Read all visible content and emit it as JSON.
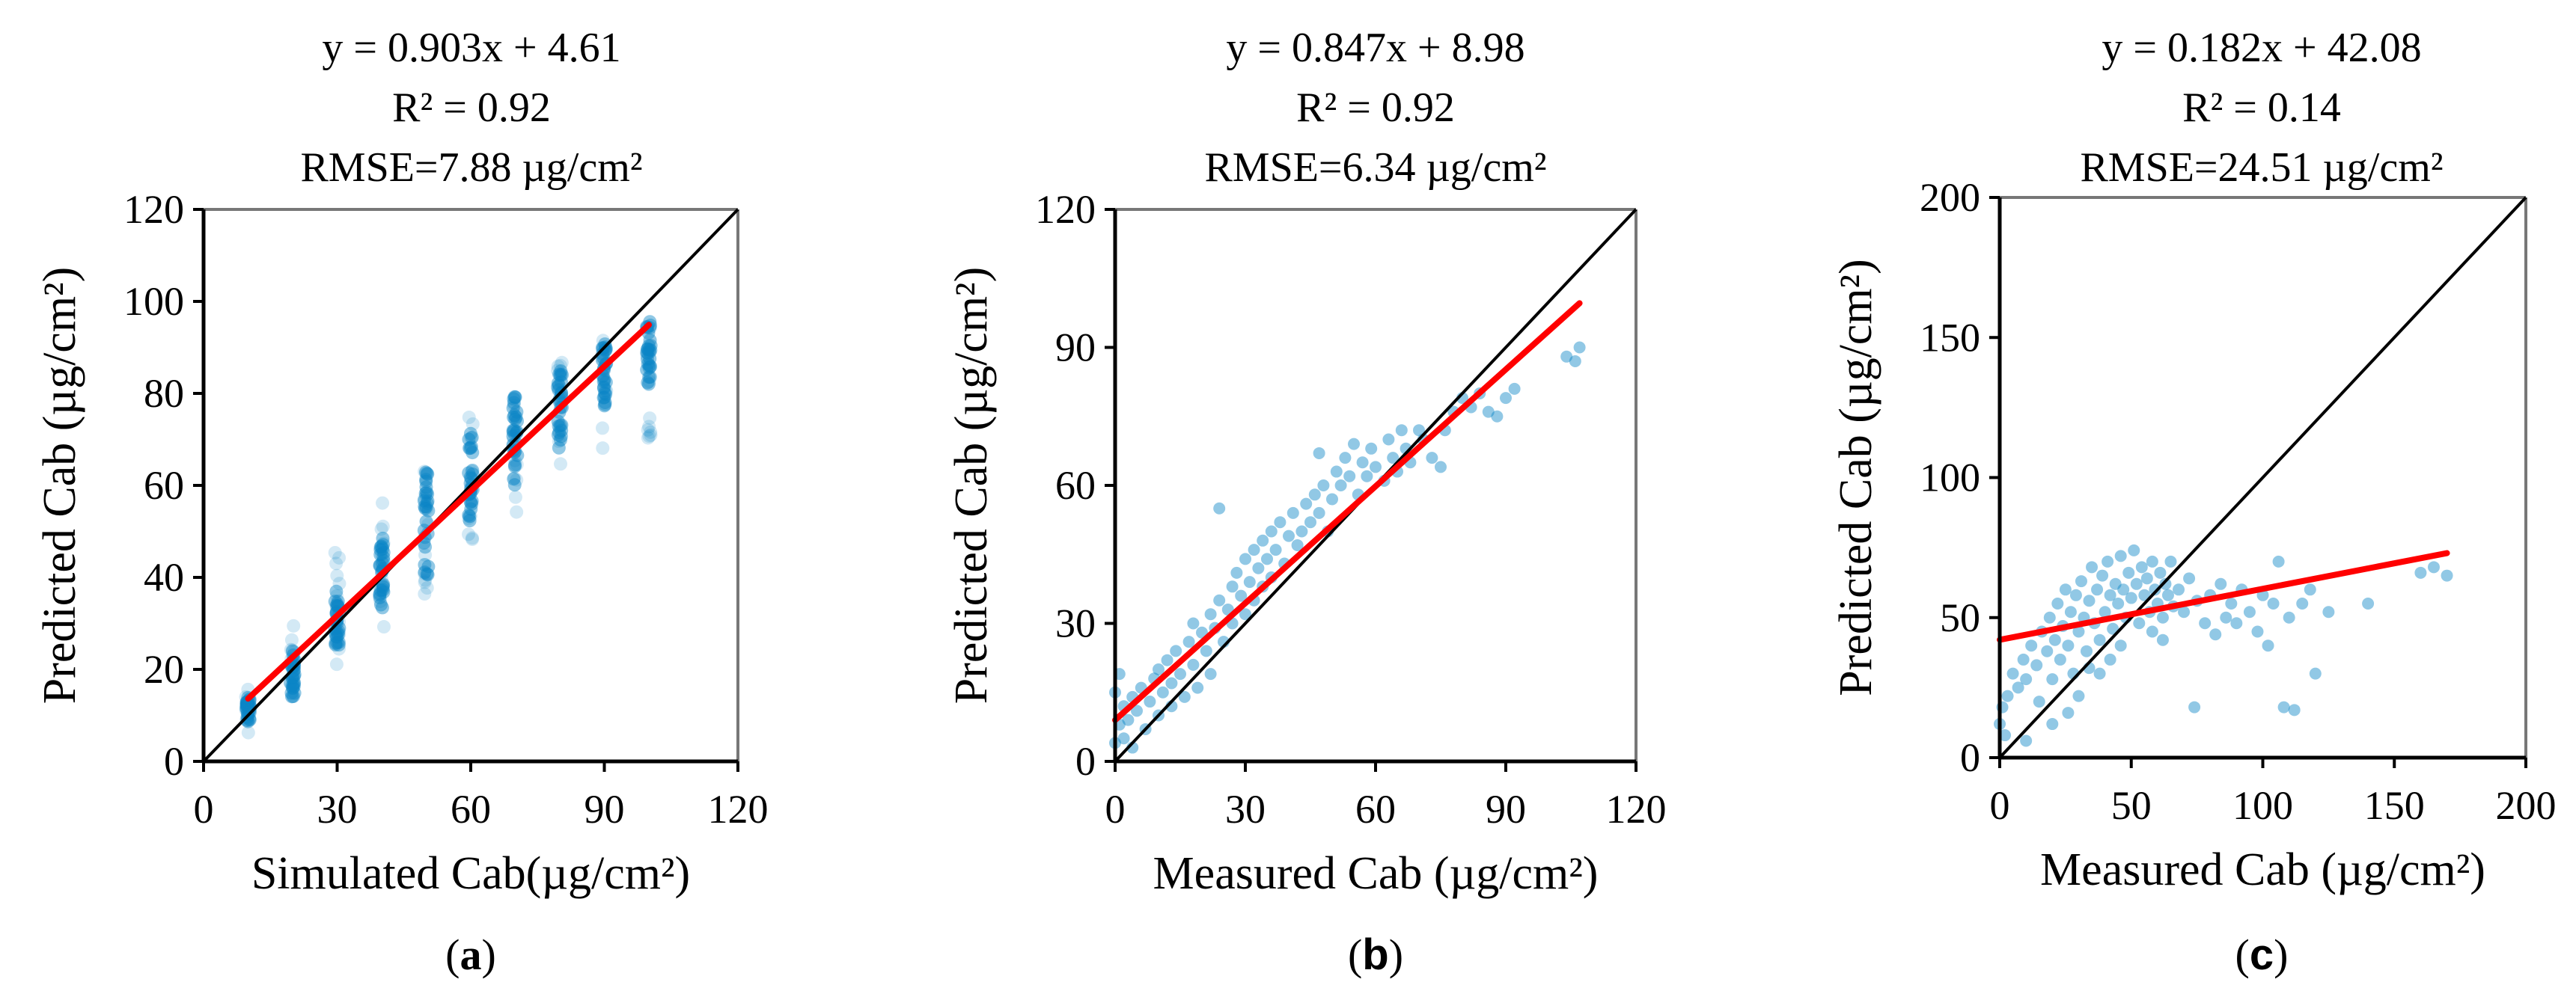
{
  "colors": {
    "points": "#0b84c6",
    "fit_line": "#ff0000",
    "identity_line": "#000000",
    "frame": "#777777"
  },
  "chart_data": [
    {
      "id": "a",
      "type": "scatter",
      "panel_label_open": "(",
      "panel_label": "a",
      "panel_label_close": ")",
      "equation": "y = 0.903x + 4.61",
      "r2": "R² = 0.92",
      "rmse": "RMSE=7.88 µg/cm²",
      "xlabel": "Simulated Cab(µg/cm²)",
      "ylabel": "Predicted Cab (µg/cm²)",
      "xlim": [
        0,
        120
      ],
      "ylim": [
        0,
        120
      ],
      "xticks": [
        0,
        30,
        60,
        90,
        120
      ],
      "yticks": [
        0,
        20,
        40,
        60,
        80,
        100,
        120
      ],
      "fit": {
        "slope": 0.903,
        "intercept": 4.61,
        "x_range": [
          10,
          100
        ]
      },
      "identity_line": true,
      "point_style": "faint",
      "columns": [
        {
          "x": 10,
          "min": 6,
          "max": 18,
          "core": [
            8,
            14
          ]
        },
        {
          "x": 20,
          "min": 12,
          "max": 30,
          "core": [
            14,
            24
          ]
        },
        {
          "x": 30,
          "min": 20,
          "max": 46,
          "core": [
            24,
            38
          ]
        },
        {
          "x": 40,
          "min": 28,
          "max": 57,
          "core": [
            33,
            50
          ]
        },
        {
          "x": 50,
          "min": 36,
          "max": 68,
          "core": [
            40,
            63
          ]
        },
        {
          "x": 60,
          "min": 44,
          "max": 76,
          "core": [
            52,
            72
          ]
        },
        {
          "x": 70,
          "min": 52,
          "max": 82,
          "core": [
            60,
            80
          ]
        },
        {
          "x": 80,
          "min": 60,
          "max": 87,
          "core": [
            68,
            86
          ]
        },
        {
          "x": 90,
          "min": 66,
          "max": 93,
          "core": [
            76,
            91
          ]
        },
        {
          "x": 100,
          "min": 70,
          "max": 97,
          "core": [
            82,
            96
          ]
        }
      ]
    },
    {
      "id": "b",
      "type": "scatter",
      "panel_label_open": "(",
      "panel_label": "b",
      "panel_label_close": ")",
      "equation": "y = 0.847x + 8.98",
      "r2": "R² = 0.92",
      "rmse": "RMSE=6.34 µg/cm²",
      "xlabel": "Measured Cab (µg/cm²)",
      "ylabel": "Predicted Cab (µg/cm²)",
      "xlim": [
        0,
        120
      ],
      "ylim": [
        0,
        120
      ],
      "xticks": [
        0,
        30,
        60,
        90,
        120
      ],
      "yticks": [
        0,
        30,
        60,
        90,
        120
      ],
      "fit": {
        "slope": 0.847,
        "intercept": 8.98,
        "x_range": [
          0,
          107
        ]
      },
      "identity_line": true,
      "point_style": "solid",
      "points": [
        [
          0,
          4
        ],
        [
          1,
          8
        ],
        [
          0,
          15
        ],
        [
          1,
          19
        ],
        [
          2,
          12
        ],
        [
          2,
          5
        ],
        [
          3,
          9
        ],
        [
          4,
          14
        ],
        [
          4,
          3
        ],
        [
          5,
          11
        ],
        [
          6,
          16
        ],
        [
          7,
          7
        ],
        [
          8,
          13
        ],
        [
          9,
          18
        ],
        [
          10,
          10
        ],
        [
          10,
          20
        ],
        [
          11,
          15
        ],
        [
          12,
          22
        ],
        [
          13,
          17
        ],
        [
          13,
          12
        ],
        [
          14,
          24
        ],
        [
          15,
          19
        ],
        [
          16,
          14
        ],
        [
          17,
          26
        ],
        [
          18,
          21
        ],
        [
          18,
          30
        ],
        [
          19,
          16
        ],
        [
          20,
          28
        ],
        [
          21,
          24
        ],
        [
          22,
          32
        ],
        [
          22,
          19
        ],
        [
          23,
          29
        ],
        [
          24,
          55
        ],
        [
          24,
          35
        ],
        [
          25,
          26
        ],
        [
          26,
          33
        ],
        [
          27,
          38
        ],
        [
          27,
          30
        ],
        [
          28,
          41
        ],
        [
          29,
          36
        ],
        [
          30,
          44
        ],
        [
          30,
          32
        ],
        [
          31,
          39
        ],
        [
          32,
          46
        ],
        [
          32,
          35
        ],
        [
          33,
          42
        ],
        [
          34,
          48
        ],
        [
          34,
          38
        ],
        [
          35,
          44
        ],
        [
          36,
          50
        ],
        [
          36,
          40
        ],
        [
          37,
          46
        ],
        [
          38,
          52
        ],
        [
          39,
          43
        ],
        [
          40,
          49
        ],
        [
          41,
          54
        ],
        [
          42,
          47
        ],
        [
          43,
          50
        ],
        [
          44,
          56
        ],
        [
          45,
          52
        ],
        [
          46,
          58
        ],
        [
          47,
          67
        ],
        [
          47,
          54
        ],
        [
          48,
          60
        ],
        [
          49,
          50
        ],
        [
          50,
          57
        ],
        [
          51,
          63
        ],
        [
          52,
          60
        ],
        [
          53,
          66
        ],
        [
          54,
          62
        ],
        [
          55,
          69
        ],
        [
          56,
          58
        ],
        [
          57,
          65
        ],
        [
          58,
          62
        ],
        [
          59,
          68
        ],
        [
          60,
          64
        ],
        [
          62,
          61
        ],
        [
          63,
          70
        ],
        [
          64,
          66
        ],
        [
          65,
          63
        ],
        [
          66,
          72
        ],
        [
          67,
          68
        ],
        [
          68,
          65
        ],
        [
          70,
          72
        ],
        [
          71,
          70
        ],
        [
          73,
          66
        ],
        [
          75,
          64
        ],
        [
          76,
          72
        ],
        [
          78,
          76
        ],
        [
          80,
          79
        ],
        [
          82,
          77
        ],
        [
          84,
          80
        ],
        [
          86,
          76
        ],
        [
          88,
          75
        ],
        [
          90,
          79
        ],
        [
          92,
          81
        ],
        [
          104,
          88
        ],
        [
          106,
          87
        ],
        [
          107,
          90
        ]
      ]
    },
    {
      "id": "c",
      "type": "scatter",
      "panel_label_open": "(",
      "panel_label": "c",
      "panel_label_close": ")",
      "equation": "y = 0.182x + 42.08",
      "r2": "R² = 0.14",
      "rmse": "RMSE=24.51 µg/cm²",
      "xlabel": "Measured Cab (µg/cm²)",
      "ylabel": "Predicted Cab (µg/cm²)",
      "xlim": [
        0,
        200
      ],
      "ylim": [
        0,
        200
      ],
      "xticks": [
        0,
        50,
        100,
        150,
        200
      ],
      "yticks": [
        0,
        50,
        100,
        150,
        200
      ],
      "fit": {
        "slope": 0.182,
        "intercept": 42.08,
        "x_range": [
          0,
          170
        ]
      },
      "identity_line": true,
      "point_style": "solid",
      "points": [
        [
          0,
          12
        ],
        [
          1,
          18
        ],
        [
          2,
          8
        ],
        [
          3,
          22
        ],
        [
          5,
          30
        ],
        [
          7,
          25
        ],
        [
          9,
          35
        ],
        [
          10,
          28
        ],
        [
          12,
          40
        ],
        [
          14,
          33
        ],
        [
          15,
          20
        ],
        [
          16,
          45
        ],
        [
          18,
          38
        ],
        [
          19,
          50
        ],
        [
          20,
          28
        ],
        [
          21,
          42
        ],
        [
          22,
          55
        ],
        [
          23,
          35
        ],
        [
          24,
          47
        ],
        [
          25,
          60
        ],
        [
          26,
          40
        ],
        [
          27,
          52
        ],
        [
          28,
          30
        ],
        [
          29,
          58
        ],
        [
          30,
          45
        ],
        [
          31,
          63
        ],
        [
          32,
          50
        ],
        [
          33,
          38
        ],
        [
          34,
          56
        ],
        [
          35,
          68
        ],
        [
          36,
          48
        ],
        [
          37,
          60
        ],
        [
          38,
          42
        ],
        [
          39,
          65
        ],
        [
          40,
          52
        ],
        [
          41,
          70
        ],
        [
          42,
          58
        ],
        [
          43,
          46
        ],
        [
          44,
          62
        ],
        [
          45,
          55
        ],
        [
          46,
          72
        ],
        [
          47,
          60
        ],
        [
          48,
          50
        ],
        [
          49,
          66
        ],
        [
          50,
          57
        ],
        [
          51,
          74
        ],
        [
          52,
          62
        ],
        [
          53,
          48
        ],
        [
          54,
          68
        ],
        [
          55,
          58
        ],
        [
          56,
          64
        ],
        [
          57,
          52
        ],
        [
          58,
          70
        ],
        [
          59,
          60
        ],
        [
          60,
          55
        ],
        [
          61,
          66
        ],
        [
          62,
          50
        ],
        [
          63,
          62
        ],
        [
          64,
          58
        ],
        [
          65,
          70
        ],
        [
          66,
          54
        ],
        [
          68,
          60
        ],
        [
          70,
          52
        ],
        [
          72,
          64
        ],
        [
          74,
          18
        ],
        [
          75,
          56
        ],
        [
          78,
          48
        ],
        [
          80,
          58
        ],
        [
          82,
          44
        ],
        [
          84,
          62
        ],
        [
          86,
          50
        ],
        [
          88,
          55
        ],
        [
          90,
          48
        ],
        [
          92,
          60
        ],
        [
          95,
          52
        ],
        [
          98,
          45
        ],
        [
          100,
          58
        ],
        [
          102,
          40
        ],
        [
          104,
          55
        ],
        [
          106,
          70
        ],
        [
          108,
          18
        ],
        [
          110,
          50
        ],
        [
          112,
          17
        ],
        [
          115,
          55
        ],
        [
          118,
          60
        ],
        [
          120,
          30
        ],
        [
          125,
          52
        ],
        [
          140,
          55
        ],
        [
          160,
          66
        ],
        [
          165,
          68
        ],
        [
          170,
          65
        ],
        [
          38,
          30
        ],
        [
          42,
          35
        ],
        [
          46,
          40
        ],
        [
          30,
          22
        ],
        [
          26,
          16
        ],
        [
          34,
          32
        ],
        [
          20,
          12
        ],
        [
          58,
          45
        ],
        [
          62,
          42
        ],
        [
          10,
          6
        ]
      ]
    }
  ]
}
